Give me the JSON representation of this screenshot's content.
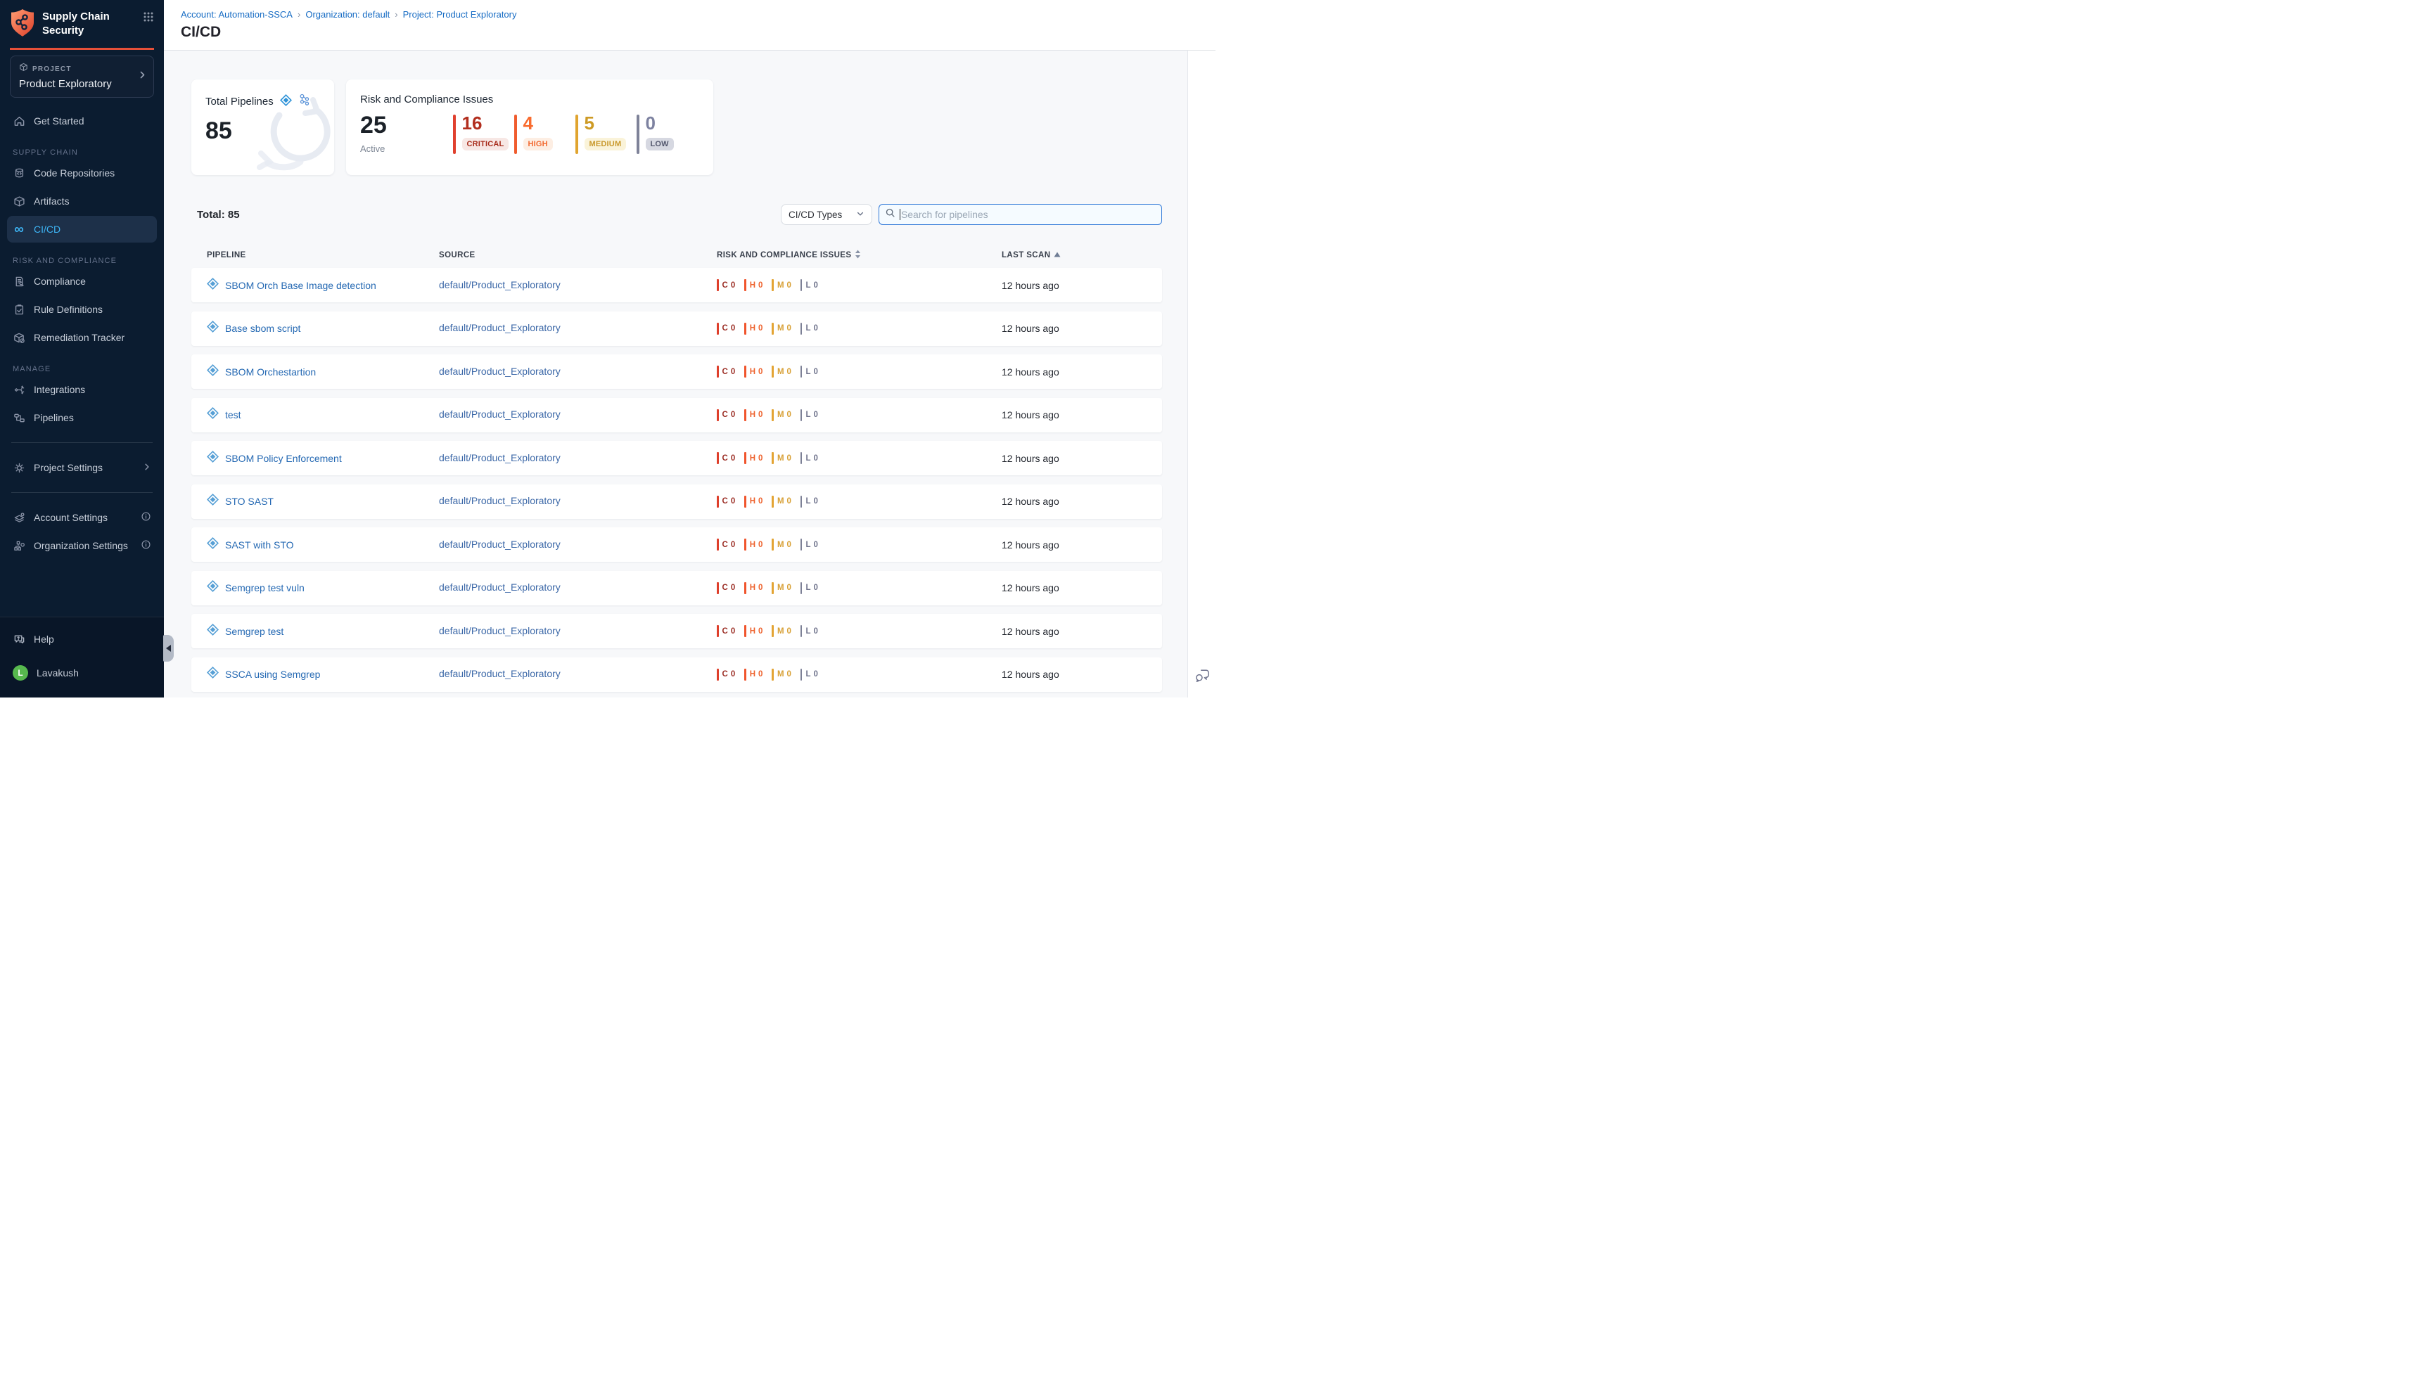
{
  "sidebar": {
    "logo": {
      "line1": "Supply Chain",
      "line2": "Security"
    },
    "project_selector": {
      "label": "PROJECT",
      "name": "Product Exploratory"
    },
    "get_started": "Get Started",
    "sections": {
      "supply_chain": "SUPPLY CHAIN",
      "risk_and_compliance": "RISK AND COMPLIANCE",
      "manage": "MANAGE"
    },
    "items": {
      "code_repositories": "Code Repositories",
      "artifacts": "Artifacts",
      "cicd": "CI/CD",
      "compliance": "Compliance",
      "rule_definitions": "Rule Definitions",
      "remediation_tracker": "Remediation Tracker",
      "integrations": "Integrations",
      "pipelines": "Pipelines",
      "project_settings": "Project Settings",
      "account_settings": "Account Settings",
      "organization_settings": "Organization Settings"
    },
    "help": "Help",
    "user": {
      "name": "Lavakush",
      "initial": "L",
      "avatar_color": "#57b94e"
    }
  },
  "header": {
    "breadcrumb": {
      "account": "Account: Automation-SSCA",
      "separator": "›",
      "organization": "Organization: default",
      "project": "Project: Product Exploratory"
    },
    "title": "CI/CD"
  },
  "summary_cards": {
    "total_pipelines": {
      "title": "Total Pipelines",
      "value": "85"
    },
    "risk": {
      "title": "Risk and Compliance Issues",
      "active_value": "25",
      "active_label": "Active",
      "severities": [
        {
          "count": "16",
          "label": "CRITICAL",
          "number_color": "#b22e1e",
          "bar_color": "#e0402e",
          "badge_bg": "#f7e7e4",
          "badge_text": "#a82d1c"
        },
        {
          "count": "4",
          "label": "HIGH",
          "number_color": "#f96b2e",
          "bar_color": "#f05c2e",
          "badge_bg": "#fdeee3",
          "badge_text": "#f2692f"
        },
        {
          "count": "5",
          "label": "MEDIUM",
          "number_color": "#cd9a24",
          "bar_color": "#e0a42f",
          "badge_bg": "#faf3d9",
          "badge_text": "#c9992c"
        },
        {
          "count": "0",
          "label": "LOW",
          "number_color": "#7d82a0",
          "bar_color": "#7e8298",
          "badge_bg": "#d6d8e1",
          "badge_text": "#53576d"
        }
      ]
    }
  },
  "toolbar": {
    "total_label": "Total: 85",
    "filter_label": "CI/CD Types",
    "search_placeholder": "Search for pipelines"
  },
  "table": {
    "columns": {
      "pipeline": "PIPELINE",
      "source": "SOURCE",
      "risk": "RISK AND COMPLIANCE ISSUES",
      "last_scan": "LAST SCAN"
    },
    "severities": [
      {
        "letter": "C",
        "text_color": "#9c2f26",
        "bar_color": "#de3f2b"
      },
      {
        "letter": "H",
        "text_color": "#ee6430",
        "bar_color": "#f0542c"
      },
      {
        "letter": "M",
        "text_color": "#d8a035",
        "bar_color": "#e3a433"
      },
      {
        "letter": "L",
        "text_color": "#6f738c",
        "bar_color": "#7c8096"
      }
    ],
    "rows": [
      {
        "name": "SBOM Orch Base Image detection",
        "source": "default/Product_Exploratory",
        "counts": [
          "0",
          "0",
          "0",
          "0"
        ],
        "last_scan": "12 hours ago"
      },
      {
        "name": "Base sbom script",
        "source": "default/Product_Exploratory",
        "counts": [
          "0",
          "0",
          "0",
          "0"
        ],
        "last_scan": "12 hours ago"
      },
      {
        "name": "SBOM Orchestartion",
        "source": "default/Product_Exploratory",
        "counts": [
          "0",
          "0",
          "0",
          "0"
        ],
        "last_scan": "12 hours ago"
      },
      {
        "name": "test",
        "source": "default/Product_Exploratory",
        "counts": [
          "0",
          "0",
          "0",
          "0"
        ],
        "last_scan": "12 hours ago"
      },
      {
        "name": "SBOM Policy Enforcement",
        "source": "default/Product_Exploratory",
        "counts": [
          "0",
          "0",
          "0",
          "0"
        ],
        "last_scan": "12 hours ago"
      },
      {
        "name": "STO SAST",
        "source": "default/Product_Exploratory",
        "counts": [
          "0",
          "0",
          "0",
          "0"
        ],
        "last_scan": "12 hours ago"
      },
      {
        "name": "SAST with STO",
        "source": "default/Product_Exploratory",
        "counts": [
          "0",
          "0",
          "0",
          "0"
        ],
        "last_scan": "12 hours ago"
      },
      {
        "name": "Semgrep test vuln",
        "source": "default/Product_Exploratory",
        "counts": [
          "0",
          "0",
          "0",
          "0"
        ],
        "last_scan": "12 hours ago"
      },
      {
        "name": "Semgrep test",
        "source": "default/Product_Exploratory",
        "counts": [
          "0",
          "0",
          "0",
          "0"
        ],
        "last_scan": "12 hours ago"
      },
      {
        "name": "SSCA using Semgrep",
        "source": "default/Product_Exploratory",
        "counts": [
          "0",
          "0",
          "0",
          "0"
        ],
        "last_scan": "12 hours ago"
      }
    ]
  }
}
